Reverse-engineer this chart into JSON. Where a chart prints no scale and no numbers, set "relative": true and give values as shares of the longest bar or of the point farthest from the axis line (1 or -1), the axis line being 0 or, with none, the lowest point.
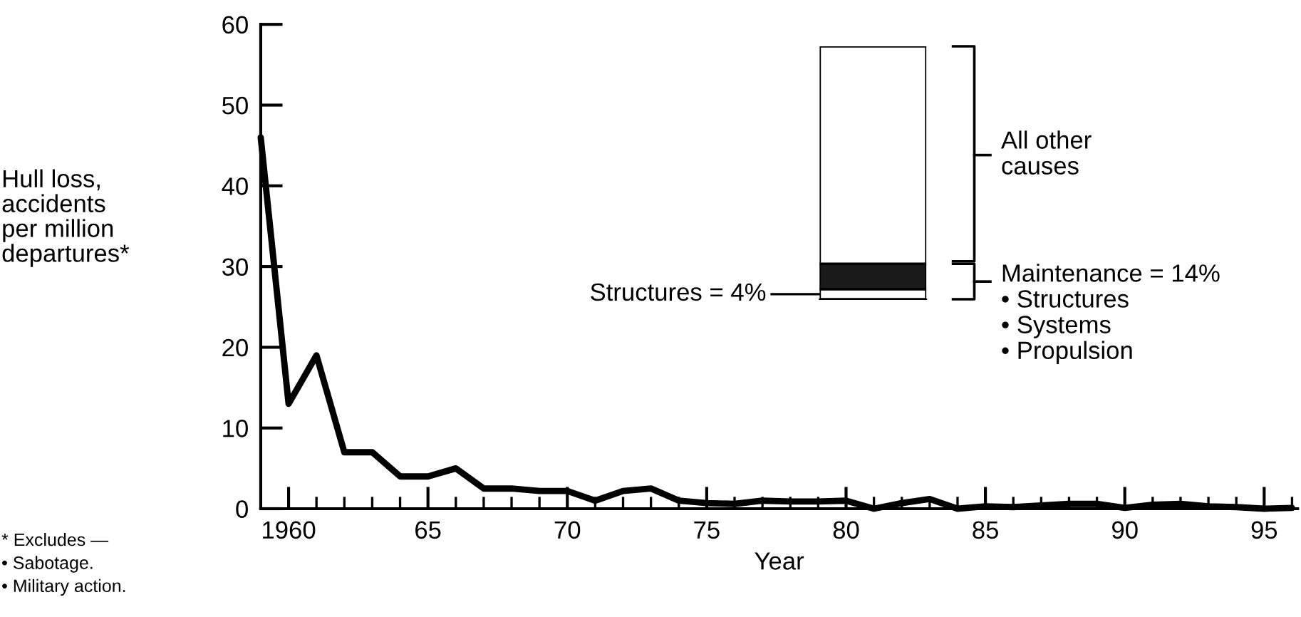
{
  "chart_data": [
    {
      "type": "line",
      "xlabel": "Year",
      "ylabel": "Hull loss,\naccidents\nper million\ndepartures*",
      "x": [
        1959,
        1960,
        1961,
        1962,
        1963,
        1964,
        1965,
        1966,
        1967,
        1968,
        1969,
        1970,
        1971,
        1972,
        1973,
        1974,
        1975,
        1976,
        1977,
        1978,
        1979,
        1980,
        1981,
        1982,
        1983,
        1984,
        1985,
        1986,
        1987,
        1988,
        1989,
        1990,
        1991,
        1992,
        1993,
        1994,
        1995,
        1996
      ],
      "series": [
        {
          "color": "#000000",
          "values": [
            46,
            13,
            19,
            7,
            7,
            4,
            4,
            5,
            2.5,
            2.5,
            2.2,
            2.2,
            1,
            2.2,
            2.5,
            1,
            0.7,
            0.6,
            1,
            0.9,
            0.9,
            1,
            0,
            0.7,
            1.2,
            0,
            0.3,
            0.2,
            0.4,
            0.6,
            0.6,
            0.1,
            0.5,
            0.6,
            0.3,
            0.2,
            0,
            0.1
          ]
        }
      ],
      "xlim": [
        1959,
        1996.2
      ],
      "ylim": [
        0,
        60
      ],
      "xticks": [
        {
          "value": 1960,
          "label": "1960"
        },
        {
          "value": 1965,
          "label": "65"
        },
        {
          "value": 1970,
          "label": "70"
        },
        {
          "value": 1975,
          "label": "75"
        },
        {
          "value": 1980,
          "label": "80"
        },
        {
          "value": 1985,
          "label": "85"
        },
        {
          "value": 1990,
          "label": "90"
        },
        {
          "value": 1995,
          "label": "95"
        }
      ],
      "yticks": [
        0,
        10,
        20,
        30,
        40,
        50,
        60
      ],
      "marker": "none",
      "line_style": "solid",
      "grid": false,
      "legend": false,
      "annotations": [
        "* Excludes —\n• Sabotage.\n• Military action."
      ]
    },
    {
      "type": "bar",
      "stacked": true,
      "relative": true,
      "categories": [
        null
      ],
      "series": [
        {
          "color": "#ffffff",
          "values": [
            0.04
          ]
        },
        {
          "color": "#1a1a1a",
          "values": [
            0.1
          ]
        },
        {
          "color": "#ffffff",
          "values": [
            0.86
          ]
        }
      ],
      "annotations": [
        "Structures = 4%",
        "Maintenance = 14%\n• Structures\n• Systems\n• Propulsion",
        "All other\ncauses"
      ]
    }
  ]
}
